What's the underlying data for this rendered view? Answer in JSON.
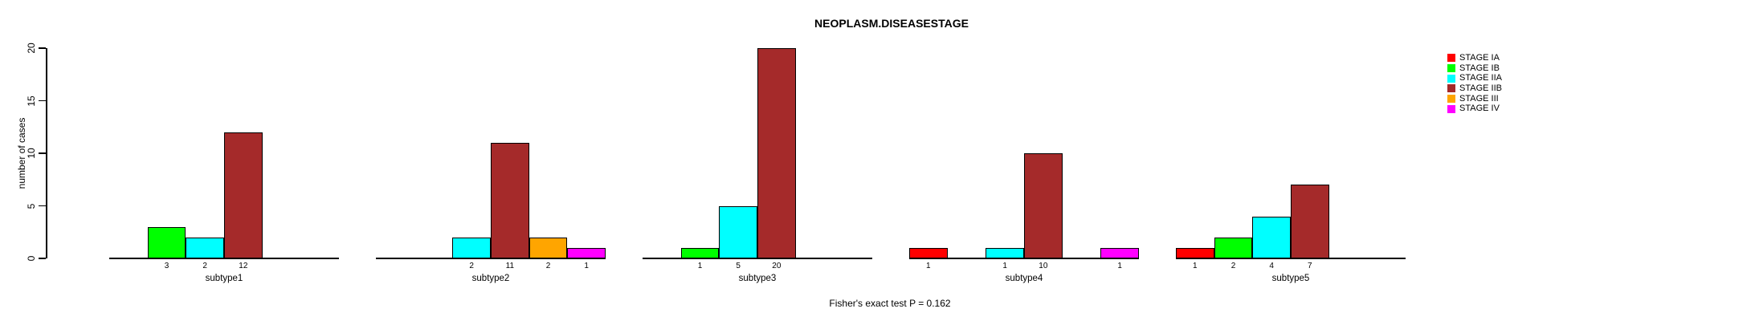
{
  "chart_data": {
    "type": "bar",
    "title": "NEOPLASM.DISEASESTAGE",
    "ylabel": "number of cases",
    "xlabel": "",
    "ylim": [
      0,
      20
    ],
    "yticks": [
      0,
      5,
      10,
      15,
      20
    ],
    "grid": false,
    "legend_position": "right",
    "caption": "Fisher's exact test P = 0.162",
    "stages": [
      {
        "name": "STAGE IA",
        "color": "#FF0000"
      },
      {
        "name": "STAGE IB",
        "color": "#00FF00"
      },
      {
        "name": "STAGE IIA",
        "color": "#00FFFF"
      },
      {
        "name": "STAGE IIB",
        "color": "#A52A2A"
      },
      {
        "name": "STAGE III",
        "color": "#FFA500"
      },
      {
        "name": "STAGE IV",
        "color": "#FF00FF"
      }
    ],
    "groups": [
      {
        "label": "subtype1",
        "values": [
          null,
          3,
          2,
          12,
          null,
          null
        ]
      },
      {
        "label": "subtype2",
        "values": [
          null,
          null,
          2,
          11,
          2,
          1
        ]
      },
      {
        "label": "subtype3",
        "values": [
          null,
          1,
          5,
          20,
          null,
          null
        ]
      },
      {
        "label": "subtype4",
        "values": [
          1,
          null,
          1,
          10,
          null,
          1
        ]
      },
      {
        "label": "subtype5",
        "values": [
          1,
          2,
          4,
          7,
          null,
          null
        ]
      }
    ]
  }
}
